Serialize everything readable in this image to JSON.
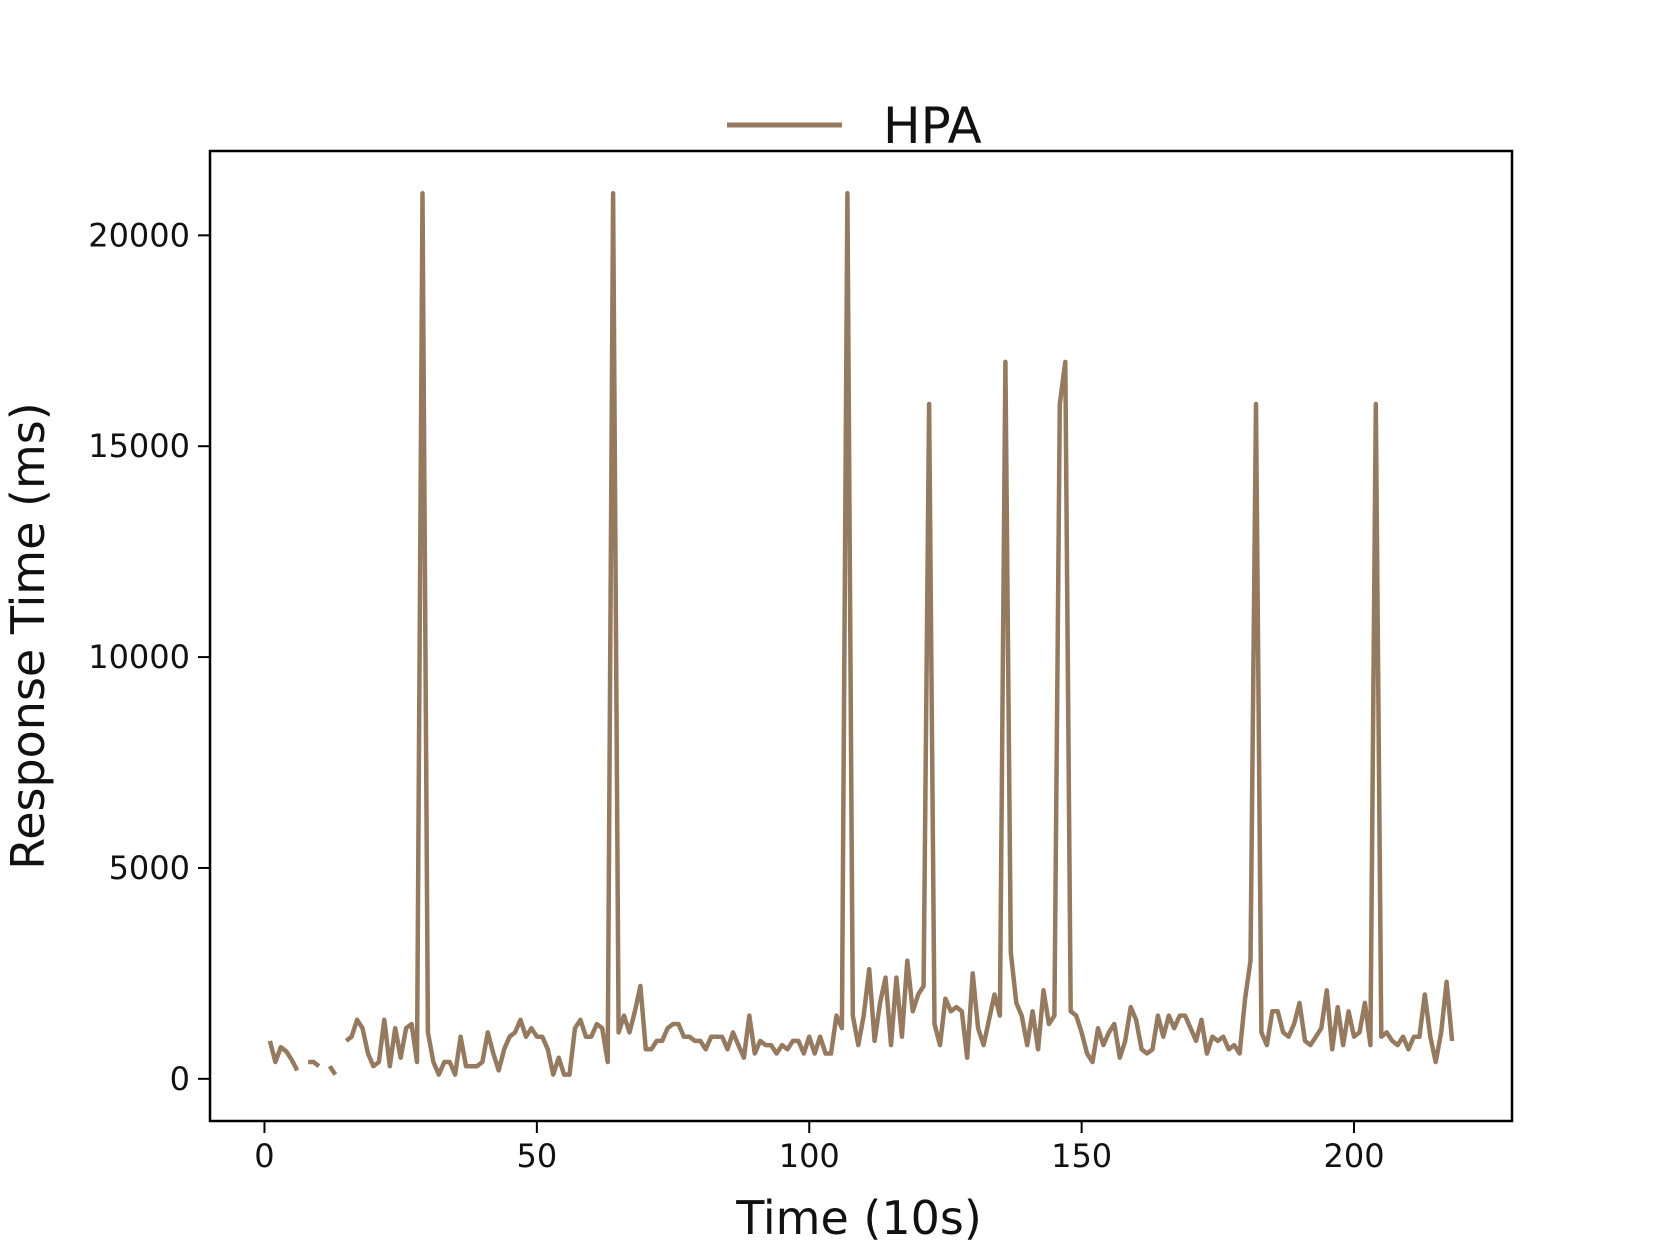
{
  "chart_data": {
    "type": "line",
    "title": "",
    "xlabel": "Time (10s)",
    "ylabel": "Response Time (ms)",
    "xlim": [
      -10,
      229
    ],
    "ylim": [
      -1000,
      22000
    ],
    "x_ticks": [
      0,
      50,
      100,
      150,
      200
    ],
    "y_ticks": [
      0,
      5000,
      10000,
      15000,
      20000
    ],
    "grid": false,
    "legend_position": "top-center",
    "series": [
      {
        "name": "HPA",
        "color": "#957a60",
        "segments": [
          {
            "x": [
              1,
              2,
              3,
              4,
              5,
              6
            ],
            "y": [
              900,
              400,
              750,
              650,
              450,
              200
            ]
          },
          {
            "x": [
              8,
              9,
              10
            ],
            "y": [
              400,
              400,
              300
            ]
          },
          {
            "x": [
              12,
              13
            ],
            "y": [
              300,
              100
            ]
          },
          {
            "x": [
              15,
              16,
              17,
              18,
              19,
              20,
              21,
              22,
              23,
              24,
              25,
              26,
              27,
              28,
              29,
              30,
              31,
              32,
              33,
              34,
              35,
              36,
              37,
              38,
              39,
              40,
              41,
              42,
              43,
              44,
              45,
              46,
              47,
              48,
              49,
              50,
              51,
              52,
              53,
              54,
              55,
              56,
              57,
              58,
              59,
              60,
              61,
              62,
              63,
              64,
              65,
              66,
              67,
              68,
              69,
              70,
              71,
              72,
              73,
              74,
              75,
              76,
              77,
              78,
              79,
              80,
              81,
              82,
              83,
              84,
              85,
              86,
              87,
              88,
              89,
              90,
              91,
              92,
              93,
              94,
              95,
              96,
              97,
              98,
              99,
              100,
              101,
              102,
              103,
              104,
              105,
              106,
              107,
              108,
              109,
              110,
              111,
              112,
              113,
              114,
              115,
              116,
              117,
              118,
              119,
              120,
              121,
              122,
              123,
              124,
              125,
              126,
              127,
              128,
              129,
              130,
              131,
              132,
              133,
              134,
              135,
              136,
              137,
              138,
              139,
              140,
              141,
              142,
              143,
              144,
              145,
              146,
              147,
              148,
              149,
              150,
              151,
              152,
              153,
              154,
              155,
              156,
              157,
              158,
              159,
              160,
              161,
              162,
              163,
              164,
              165,
              166,
              167,
              168,
              169,
              170,
              171,
              172,
              173,
              174,
              175,
              176,
              177,
              178,
              179,
              180,
              181,
              182,
              183,
              184,
              185,
              186,
              187,
              188,
              189,
              190,
              191,
              192,
              193,
              194,
              195,
              196,
              197,
              198,
              199,
              200,
              201,
              202,
              203,
              204,
              205,
              206,
              207,
              208,
              209,
              210,
              211,
              212,
              213,
              214,
              215,
              216,
              217,
              218
            ],
            "y": [
              900,
              1000,
              1400,
              1200,
              600,
              300,
              400,
              1400,
              300,
              1200,
              500,
              1200,
              1300,
              400,
              21000,
              1100,
              400,
              100,
              400,
              400,
              100,
              1000,
              300,
              300,
              300,
              400,
              1100,
              600,
              200,
              700,
              1000,
              1100,
              1400,
              1000,
              1200,
              1000,
              1000,
              700,
              100,
              500,
              100,
              100,
              1200,
              1400,
              1000,
              1000,
              1300,
              1200,
              400,
              21000,
              1100,
              1500,
              1100,
              1600,
              2200,
              700,
              700,
              900,
              900,
              1200,
              1300,
              1300,
              1000,
              1000,
              900,
              900,
              700,
              1000,
              1000,
              1000,
              700,
              1100,
              800,
              500,
              1500,
              600,
              900,
              800,
              800,
              600,
              800,
              700,
              900,
              900,
              600,
              1000,
              600,
              1000,
              600,
              600,
              1500,
              1200,
              21000,
              1500,
              800,
              1500,
              2600,
              900,
              1800,
              2400,
              800,
              2400,
              1000,
              2800,
              1600,
              2000,
              2200,
              16000,
              1300,
              800,
              1900,
              1600,
              1700,
              1600,
              500,
              2500,
              1200,
              800,
              1400,
              2000,
              1500,
              17000,
              3000,
              1800,
              1500,
              800,
              1600,
              700,
              2100,
              1300,
              1500,
              16000,
              17000,
              1600,
              1500,
              1100,
              600,
              400,
              1200,
              800,
              1100,
              1300,
              500,
              900,
              1700,
              1400,
              700,
              600,
              700,
              1500,
              1000,
              1500,
              1200,
              1500,
              1500,
              1200,
              900,
              1400,
              600,
              1000,
              900,
              1000,
              700,
              800,
              600,
              1900,
              2800,
              16000,
              1100,
              800,
              1600,
              1600,
              1100,
              1000,
              1300,
              1800,
              900,
              800,
              1000,
              1200,
              2100,
              700,
              1700,
              800,
              1600,
              1000,
              1100,
              1800,
              800,
              16000,
              1000,
              1100,
              900,
              800,
              1000,
              700,
              1000,
              1000,
              2000,
              1000,
              400,
              1100,
              2300,
              900
            ]
          }
        ]
      }
    ]
  }
}
